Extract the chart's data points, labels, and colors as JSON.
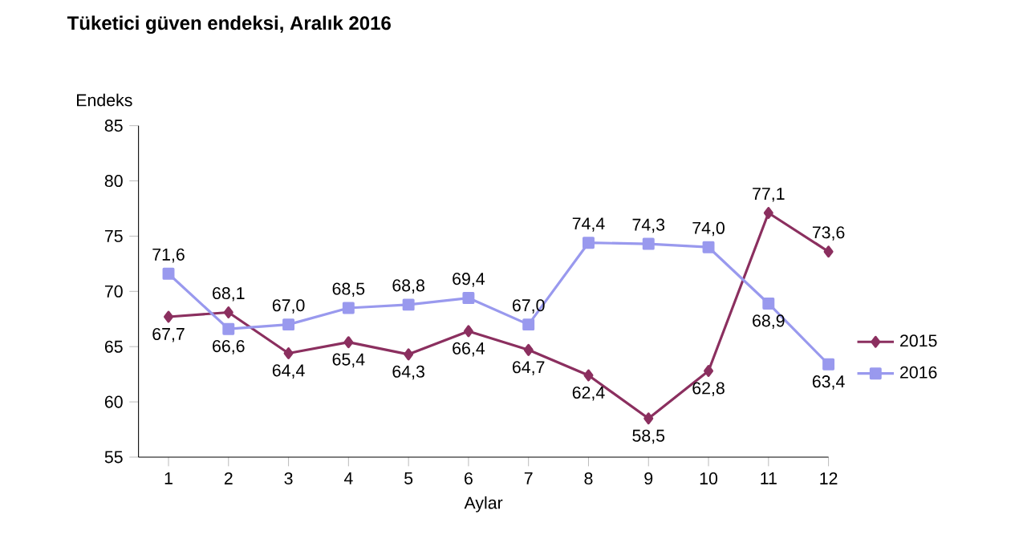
{
  "chart_data": {
    "type": "line",
    "title": "Tüketici güven endeksi, Aralık 2016",
    "xlabel": "Aylar",
    "ylabel": "Endeks",
    "categories": [
      "1",
      "2",
      "3",
      "4",
      "5",
      "6",
      "7",
      "8",
      "9",
      "10",
      "11",
      "12"
    ],
    "series": [
      {
        "name": "2015",
        "color": "#8b2f5f",
        "marker": "diamond",
        "values": [
          67.7,
          68.1,
          64.4,
          65.4,
          64.3,
          66.4,
          64.7,
          62.4,
          58.5,
          62.8,
          77.1,
          73.6
        ],
        "value_labels": [
          "67,7",
          "68,1",
          "64,4",
          "65,4",
          "64,3",
          "66,4",
          "64,7",
          "62,4",
          "58,5",
          "62,8",
          "77,1",
          "73,6"
        ]
      },
      {
        "name": "2016",
        "color": "#9999ee",
        "marker": "square",
        "values": [
          71.6,
          66.6,
          67.0,
          68.5,
          68.8,
          69.4,
          67.0,
          74.4,
          74.3,
          74.0,
          68.9,
          63.4
        ],
        "value_labels": [
          "71,6",
          "66,6",
          "67,0",
          "68,5",
          "68,8",
          "69,4",
          "67,0",
          "74,4",
          "74,3",
          "74,0",
          "68,9",
          "63,4"
        ]
      }
    ],
    "ylim": [
      55,
      85
    ],
    "yticks": [
      55,
      60,
      65,
      70,
      75,
      80,
      85
    ],
    "grid": false,
    "legend": "right"
  }
}
